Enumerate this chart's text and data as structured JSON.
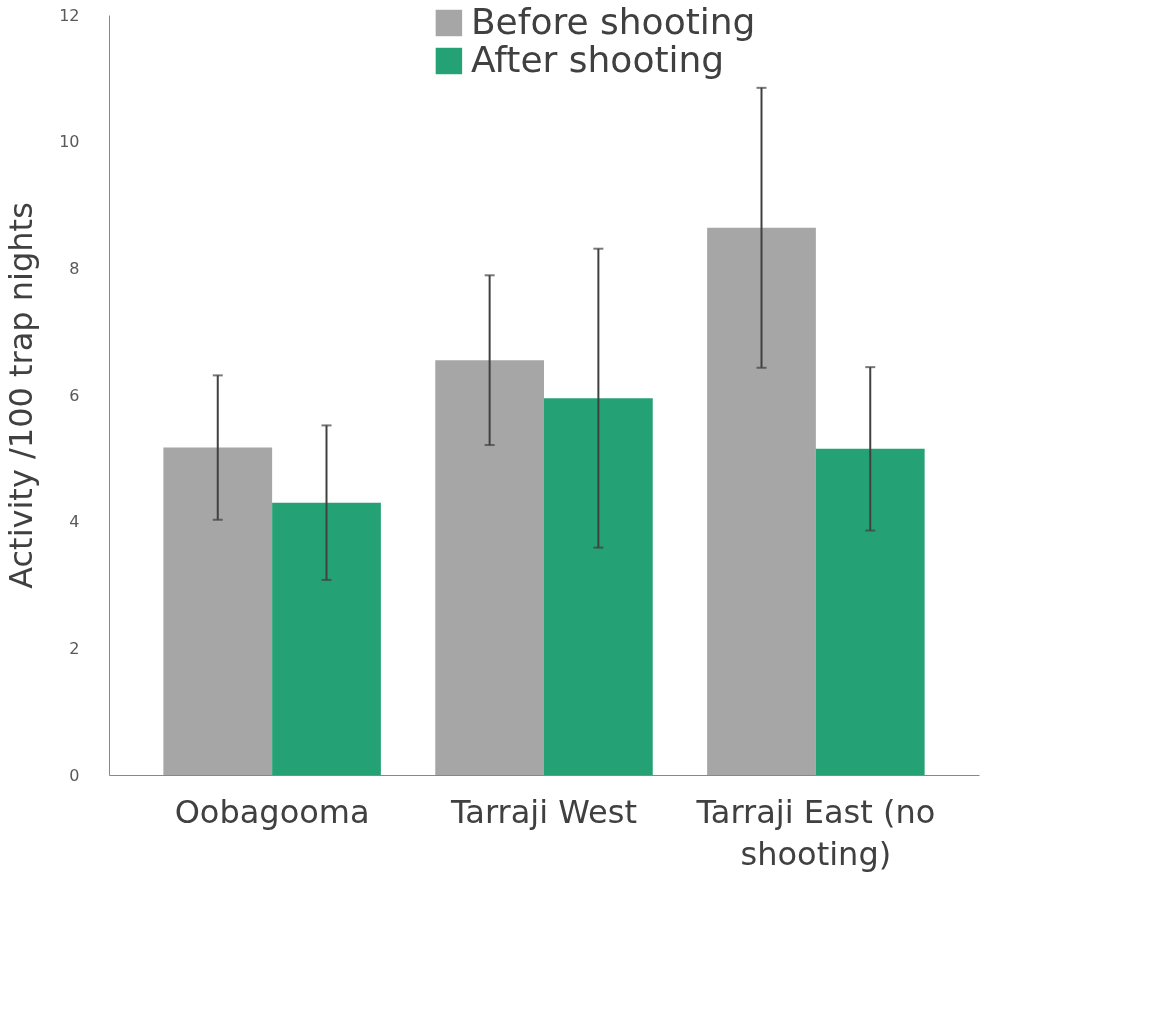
{
  "chart_data": {
    "type": "bar",
    "ylabel": "Activity /100 trap nights",
    "categories": [
      "Oobagooma",
      "Tarraji West",
      "Tarraji East (no shooting)"
    ],
    "series": [
      {
        "name": "Before shooting",
        "color": "#a6a6a6",
        "values": [
          5.17,
          6.55,
          8.64
        ],
        "errors": [
          1.14,
          1.34,
          2.21
        ]
      },
      {
        "name": "After shooting",
        "color": "#25a275",
        "values": [
          4.3,
          5.95,
          5.15
        ],
        "errors": [
          1.22,
          2.36,
          1.29
        ]
      }
    ],
    "ylim": [
      0,
      12
    ],
    "yticks": [
      0,
      2,
      4,
      6,
      8,
      10,
      12
    ],
    "grid": false,
    "legend": "top"
  }
}
